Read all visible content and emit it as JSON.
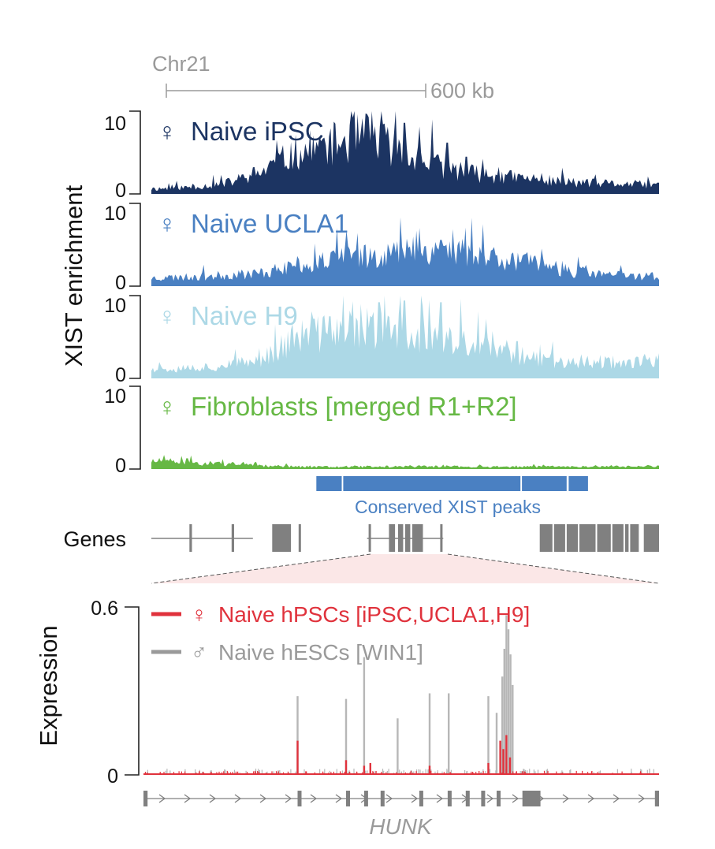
{
  "colors": {
    "ipsc": "#1c3462",
    "ucla1": "#4a80c2",
    "h9": "#acd8e6",
    "fibro": "#66b844",
    "peaks": "#4a80c2",
    "genes": "#808080",
    "female_expr": "#e0323c",
    "male_expr": "#b7b7b7",
    "axis": "#222222",
    "scale": "#9a9a9a",
    "zoom": "#f8dede"
  },
  "header": {
    "chrom": "Chr21",
    "scale_label": "600 kb"
  },
  "chart_data": [
    {
      "type": "area",
      "ylabel": "XIST enrichment",
      "ylim": [
        0,
        10
      ],
      "yticks": [
        "10",
        "0"
      ],
      "series": [
        {
          "name": "Naive iPSC",
          "symbol": "♀",
          "color": "#1c3462",
          "profile": [
            0.6,
            0.8,
            1.2,
            2.6,
            5.0,
            6.0,
            7.0,
            5.0,
            3.2,
            2.4,
            2.0,
            1.6,
            1.3,
            1.2,
            1.1
          ],
          "peaks": [
            [
              0.481,
              10.0
            ],
            [
              0.498,
              8.6
            ],
            [
              0.553,
              9.0
            ],
            [
              0.529,
              7.8
            ],
            [
              0.44,
              7.6
            ],
            [
              0.412,
              6.8
            ],
            [
              0.35,
              5.0
            ],
            [
              0.31,
              4.5
            ],
            [
              0.583,
              6.2
            ],
            [
              0.62,
              4.5
            ],
            [
              0.35,
              6.0
            ]
          ]
        },
        {
          "name": "Naive UCLA1",
          "symbol": "♀",
          "color": "#4a80c2",
          "profile": [
            1.0,
            1.1,
            1.3,
            1.6,
            2.5,
            3.2,
            3.8,
            4.2,
            4.4,
            4.0,
            3.2,
            2.2,
            1.6,
            1.3,
            1.2
          ],
          "peaks": [
            [
              0.57,
              5.6
            ],
            [
              0.51,
              4.8
            ],
            [
              0.46,
              4.2
            ],
            [
              0.67,
              4.3
            ],
            [
              0.39,
              3.4
            ]
          ]
        },
        {
          "name": "Naive H9",
          "symbol": "♀",
          "color": "#acd8e6",
          "profile": [
            1.2,
            1.3,
            1.5,
            2.2,
            5.0,
            5.5,
            6.0,
            5.5,
            4.5,
            3.8,
            2.8,
            2.2,
            2.0,
            2.0,
            2.1
          ],
          "peaks": [
            [
              0.448,
              9.2
            ],
            [
              0.352,
              7.5
            ],
            [
              0.32,
              7.2
            ],
            [
              0.412,
              9.0
            ],
            [
              0.49,
              10.0
            ],
            [
              0.498,
              9.4
            ],
            [
              0.535,
              8.8
            ],
            [
              0.57,
              9.2
            ],
            [
              0.61,
              9.6
            ],
            [
              0.66,
              7.2
            ],
            [
              0.72,
              4.5
            ],
            [
              0.79,
              4.5
            ]
          ]
        },
        {
          "name": "Fibroblasts [merged R1+R2]",
          "symbol": "♀",
          "color": "#66b844",
          "profile": [
            1.0,
            0.8,
            0.6,
            0.4,
            0.3,
            0.3,
            0.3,
            0.3,
            0.3,
            0.3,
            0.3,
            0.3,
            0.3,
            0.3,
            0.3
          ],
          "peaks": [
            [
              0.025,
              1.7
            ],
            [
              0.07,
              1.3
            ],
            [
              0.14,
              1.2
            ]
          ]
        }
      ]
    },
    {
      "type": "area",
      "ylabel": "Expression",
      "ylim": [
        0,
        0.6
      ],
      "yticks": [
        "0.6",
        "0"
      ],
      "series": [
        {
          "name": "Naive hPSCs [iPSC,UCLA1,H9]",
          "symbol": "♀",
          "color": "#e0323c",
          "spikes": [
            [
              0.299,
              0.12
            ],
            [
              0.393,
              0.05
            ],
            [
              0.428,
              0.03
            ],
            [
              0.44,
              0.04
            ],
            [
              0.555,
              0.03
            ],
            [
              0.669,
              0.04
            ],
            [
              0.692,
              0.12
            ],
            [
              0.698,
              0.09
            ],
            [
              0.704,
              0.14
            ],
            [
              0.711,
              0.06
            ]
          ]
        },
        {
          "name": "Naive hESCs [WIN1]",
          "symbol": "♂",
          "color": "#b7b7b7",
          "spikes": [
            [
              0.299,
              0.28
            ],
            [
              0.393,
              0.27
            ],
            [
              0.428,
              0.42
            ],
            [
              0.493,
              0.2
            ],
            [
              0.555,
              0.29
            ],
            [
              0.592,
              0.29
            ],
            [
              0.669,
              0.28
            ],
            [
              0.685,
              0.22
            ],
            [
              0.696,
              0.35
            ],
            [
              0.7,
              0.45
            ],
            [
              0.704,
              0.57
            ],
            [
              0.708,
              0.52
            ],
            [
              0.712,
              0.43
            ],
            [
              0.716,
              0.32
            ]
          ]
        }
      ]
    }
  ],
  "peaks_track": {
    "label": "Conserved XIST peaks",
    "segments": [
      [
        0.325,
        0.375
      ],
      [
        0.378,
        0.727
      ],
      [
        0.73,
        0.818
      ],
      [
        0.822,
        0.86
      ]
    ]
  },
  "genes_track": {
    "label": "Genes",
    "line_segments": [
      [
        0,
        0.2
      ],
      [
        0.425,
        0.575
      ]
    ],
    "blocks": [
      [
        0.075,
        0.08
      ],
      [
        0.158,
        0.163
      ],
      [
        0.238,
        0.275
      ],
      [
        0.29,
        0.294
      ],
      [
        0.428,
        0.432
      ],
      [
        0.468,
        0.48
      ],
      [
        0.486,
        0.496
      ],
      [
        0.5,
        0.51
      ],
      [
        0.514,
        0.535
      ],
      [
        0.569,
        0.573
      ],
      [
        0.765,
        0.96
      ],
      [
        0.97,
        1.0
      ]
    ]
  },
  "hunk": {
    "label": "HUNK",
    "exons": [
      [
        0,
        0.008
      ],
      [
        0.299,
        0.305
      ],
      [
        0.393,
        0.398
      ],
      [
        0.428,
        0.433
      ],
      [
        0.46,
        0.465
      ],
      [
        0.535,
        0.54
      ],
      [
        0.59,
        0.595
      ],
      [
        0.625,
        0.63
      ],
      [
        0.655,
        0.66
      ],
      [
        0.685,
        0.69
      ],
      [
        0.735,
        0.77
      ],
      [
        0.992,
        1.0
      ]
    ]
  }
}
